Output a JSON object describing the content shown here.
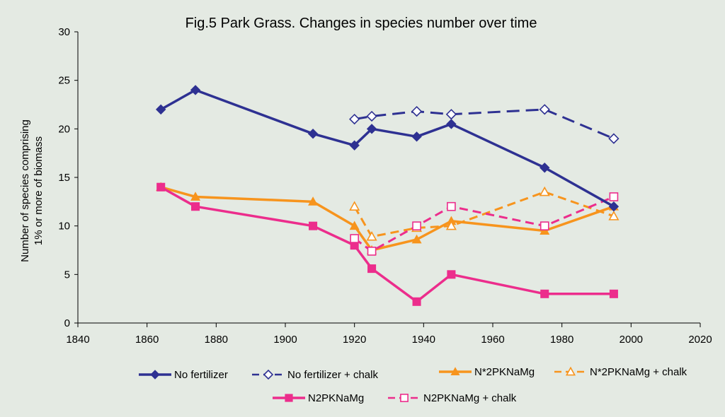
{
  "chart_data": {
    "type": "line",
    "title": "Fig.5  Park Grass.  Changes in species number over time",
    "xlabel": "",
    "ylabel_lines": [
      "Number of species comprising",
      "1% or more of biomass"
    ],
    "xlim": [
      1840,
      2020
    ],
    "ylim": [
      0,
      30
    ],
    "xticks": [
      1840,
      1860,
      1880,
      1900,
      1920,
      1940,
      1960,
      1980,
      2000,
      2020
    ],
    "yticks": [
      0,
      5,
      10,
      15,
      20,
      25,
      30
    ],
    "grid": false,
    "legend_position": "bottom",
    "series": [
      {
        "name": "No fertilizer",
        "color": "#2e3192",
        "dashed": false,
        "marker": "diamond",
        "filled": true,
        "x": [
          1864,
          1874,
          1908,
          1920,
          1925,
          1938,
          1948,
          1975,
          1995
        ],
        "y": [
          22,
          24,
          19.5,
          18.3,
          20,
          19.2,
          20.5,
          16,
          12
        ]
      },
      {
        "name": "No fertilizer + chalk",
        "color": "#2e3192",
        "dashed": true,
        "marker": "diamond",
        "filled": false,
        "x": [
          1920,
          1925,
          1938,
          1948,
          1975,
          1995
        ],
        "y": [
          21,
          21.3,
          21.8,
          21.5,
          22,
          19
        ]
      },
      {
        "name": "N*2PKNaMg",
        "color": "#f7941d",
        "dashed": false,
        "marker": "triangle",
        "filled": true,
        "x": [
          1864,
          1874,
          1908,
          1920,
          1925,
          1938,
          1948,
          1975,
          1995
        ],
        "y": [
          14,
          13,
          12.5,
          10,
          7.5,
          8.6,
          10.5,
          9.5,
          12
        ]
      },
      {
        "name": "N*2PKNaMg + chalk",
        "color": "#f7941d",
        "dashed": true,
        "marker": "triangle",
        "filled": false,
        "x": [
          1920,
          1925,
          1938,
          1948,
          1975,
          1995
        ],
        "y": [
          12,
          8.9,
          9.8,
          10,
          13.5,
          11
        ]
      },
      {
        "name": "N2PKNaMg",
        "color": "#ec2d8c",
        "dashed": false,
        "marker": "square",
        "filled": true,
        "x": [
          1864,
          1874,
          1908,
          1920,
          1925,
          1938,
          1948,
          1975,
          1995
        ],
        "y": [
          14,
          12,
          10,
          8,
          5.6,
          2.2,
          5,
          3,
          3
        ]
      },
      {
        "name": "N2PKNaMg + chalk",
        "color": "#ec2d8c",
        "dashed": true,
        "marker": "square",
        "filled": false,
        "x": [
          1920,
          1925,
          1938,
          1948,
          1975,
          1995
        ],
        "y": [
          8.7,
          7.4,
          10,
          12,
          10,
          13
        ]
      }
    ]
  }
}
